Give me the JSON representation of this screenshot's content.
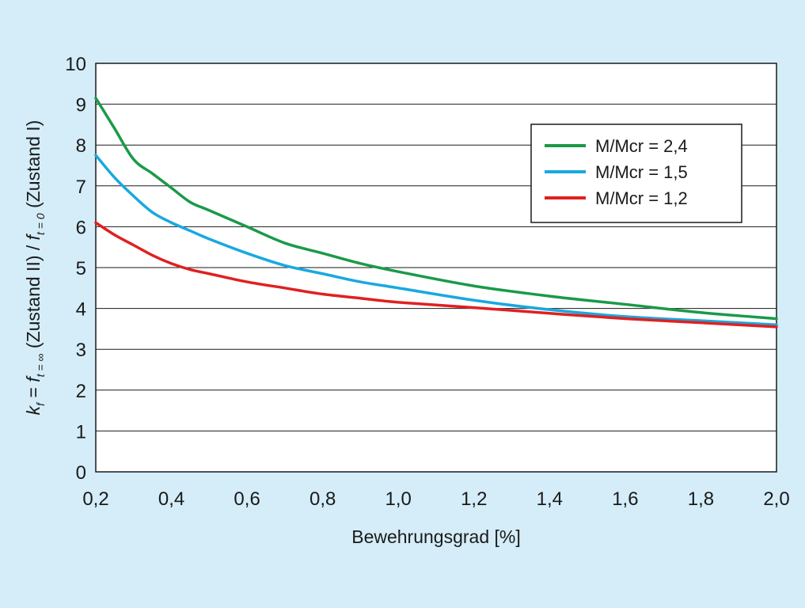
{
  "chart_data": {
    "type": "line",
    "xlabel": "Bewehrungsgrad [%]",
    "ylabel": {
      "k": "k",
      "k_sub": "f",
      "eq": " = ",
      "f1": "f",
      "f1_sub": "t = ∞",
      "zustand2": " (Zustand II) / ",
      "f2": "f",
      "f2_sub": "t = 0",
      "zustand1": " (Zustand I)"
    },
    "xlim": [
      0.2,
      2.0
    ],
    "ylim": [
      0,
      10
    ],
    "x_ticks": [
      0.2,
      0.4,
      0.6,
      0.8,
      1.0,
      1.2,
      1.4,
      1.6,
      1.8,
      2.0
    ],
    "x_tick_labels": [
      "0,2",
      "0,4",
      "0,6",
      "0,8",
      "1,0",
      "1,2",
      "1,4",
      "1,6",
      "1,8",
      "2,0"
    ],
    "y_ticks": [
      0,
      1,
      2,
      3,
      4,
      5,
      6,
      7,
      8,
      9,
      10
    ],
    "y_tick_labels": [
      "0",
      "1",
      "2",
      "3",
      "4",
      "5",
      "6",
      "7",
      "8",
      "9",
      "10"
    ],
    "grid": "horizontal",
    "legend_position": "top-right",
    "series": [
      {
        "name": "M/Mcr = 2,4",
        "color": "#1a9a48",
        "x": [
          0.2,
          0.25,
          0.3,
          0.35,
          0.4,
          0.45,
          0.5,
          0.6,
          0.7,
          0.8,
          0.9,
          1.0,
          1.2,
          1.4,
          1.6,
          1.8,
          2.0
        ],
        "y": [
          9.15,
          8.4,
          7.65,
          7.3,
          6.95,
          6.6,
          6.4,
          6.0,
          5.6,
          5.35,
          5.1,
          4.9,
          4.55,
          4.3,
          4.1,
          3.9,
          3.75
        ]
      },
      {
        "name": "M/Mcr = 1,5",
        "color": "#19a8e0",
        "x": [
          0.2,
          0.25,
          0.3,
          0.35,
          0.4,
          0.45,
          0.5,
          0.6,
          0.7,
          0.8,
          0.9,
          1.0,
          1.2,
          1.4,
          1.6,
          1.8,
          2.0
        ],
        "y": [
          7.75,
          7.2,
          6.75,
          6.35,
          6.1,
          5.9,
          5.7,
          5.35,
          5.05,
          4.85,
          4.65,
          4.5,
          4.2,
          3.97,
          3.8,
          3.7,
          3.6
        ]
      },
      {
        "name": "M/Mcr = 1,2",
        "color": "#e02020",
        "x": [
          0.2,
          0.25,
          0.3,
          0.35,
          0.4,
          0.45,
          0.5,
          0.6,
          0.7,
          0.8,
          0.9,
          1.0,
          1.2,
          1.4,
          1.6,
          1.8,
          2.0
        ],
        "y": [
          6.1,
          5.8,
          5.55,
          5.3,
          5.1,
          4.95,
          4.85,
          4.65,
          4.5,
          4.35,
          4.25,
          4.15,
          4.02,
          3.88,
          3.75,
          3.65,
          3.55
        ]
      }
    ]
  }
}
